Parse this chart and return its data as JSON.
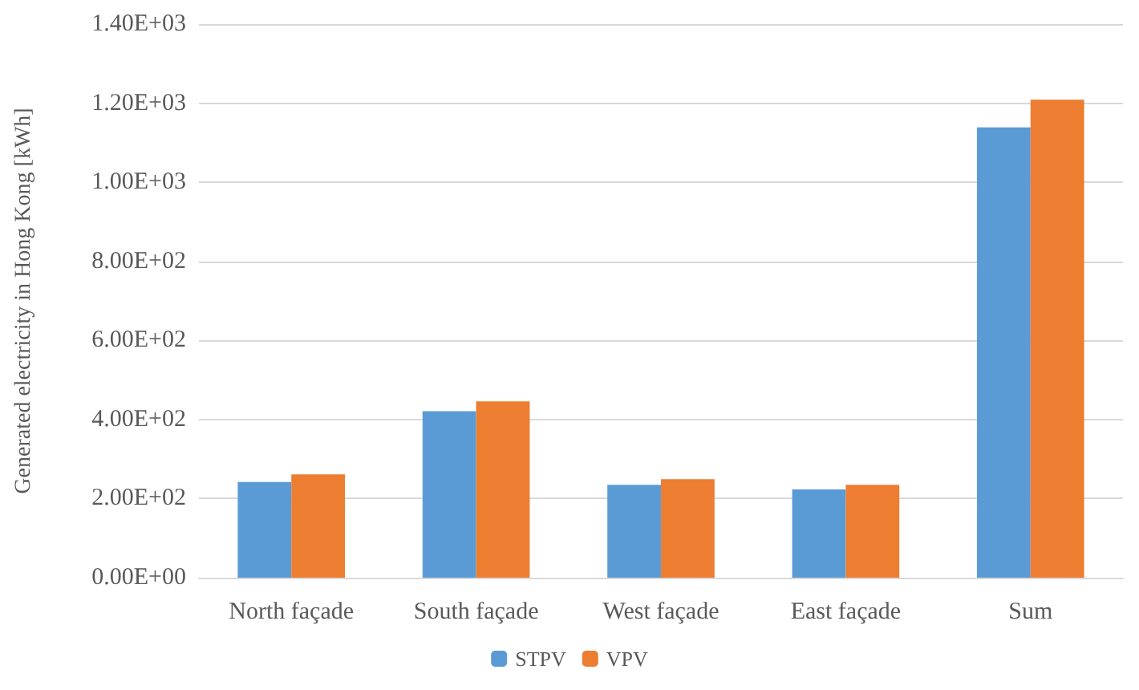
{
  "chart_data": {
    "type": "bar",
    "ylabel": "Generated electricity in Hong Kong [kWh]",
    "categories": [
      "North façade",
      "South façade",
      "West façade",
      "East façade",
      "Sum"
    ],
    "series": [
      {
        "name": "STPV",
        "color": "#5b9bd5",
        "values": [
          242,
          421,
          235,
          223,
          1139
        ]
      },
      {
        "name": "VPV",
        "color": "#ed7d31",
        "values": [
          261,
          446,
          249,
          235,
          1209
        ]
      }
    ],
    "ylim": [
      0,
      1400
    ],
    "yticks": [
      {
        "value": 0,
        "label": "0.00E+00"
      },
      {
        "value": 200,
        "label": "2.00E+02"
      },
      {
        "value": 400,
        "label": "4.00E+02"
      },
      {
        "value": 600,
        "label": "6.00E+02"
      },
      {
        "value": 800,
        "label": "8.00E+02"
      },
      {
        "value": 1000,
        "label": "1.00E+03"
      },
      {
        "value": 1200,
        "label": "1.20E+03"
      },
      {
        "value": 1400,
        "label": "1.40E+03"
      }
    ],
    "grid": true,
    "legend": "bottom"
  }
}
